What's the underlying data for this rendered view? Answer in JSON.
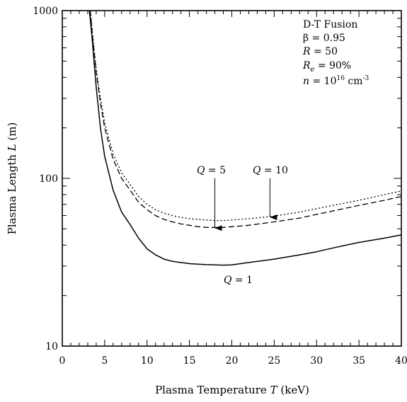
{
  "chart_data": {
    "type": "line",
    "title": "",
    "xlabel": "Plasma Temperature",
    "xlabel_symbol": "T",
    "xlabel_unit": "(keV)",
    "ylabel": "Plasma Length",
    "ylabel_symbol": "L",
    "ylabel_unit": "(m)",
    "xlim": [
      0,
      40
    ],
    "ylim": [
      10,
      1000
    ],
    "yscale": "log",
    "grid": false,
    "xticks": [
      0,
      5,
      10,
      15,
      20,
      25,
      30,
      35,
      40
    ],
    "xtick_labels": [
      "0",
      "5",
      "10",
      "15",
      "20",
      "25",
      "30",
      "35",
      "40"
    ],
    "yticks": [
      10,
      100,
      1000
    ],
    "ytick_labels": [
      "10",
      "100",
      "1000"
    ],
    "series": [
      {
        "label": "Q = 1",
        "style": "solid",
        "x": [
          3.2,
          3.5,
          4,
          4.5,
          5,
          6,
          7,
          8,
          9,
          10,
          11,
          12,
          13,
          14,
          15,
          16,
          17,
          18,
          19,
          20,
          22,
          25,
          28,
          30,
          32,
          35,
          38,
          40
        ],
        "y": [
          1000,
          700,
          350,
          200,
          135,
          85,
          63,
          53,
          44,
          38,
          35,
          33,
          32,
          31.5,
          31,
          30.8,
          30.6,
          30.5,
          30.4,
          30.5,
          31.5,
          33,
          35,
          36.5,
          38.5,
          41.5,
          44,
          46
        ]
      },
      {
        "label": "Q = 5",
        "style": "dashed",
        "x": [
          3.3,
          3.6,
          4,
          4.5,
          5,
          6,
          7,
          8,
          9,
          10,
          11,
          12,
          13,
          14,
          15,
          16,
          17,
          18,
          19,
          20,
          22,
          25,
          28,
          30,
          32,
          35,
          38,
          40
        ],
        "y": [
          1000,
          680,
          430,
          280,
          200,
          130,
          100,
          85,
          72,
          65,
          60,
          57,
          55,
          53.5,
          52.5,
          51.5,
          51,
          51,
          51,
          51.5,
          52.5,
          55,
          58,
          61,
          64,
          69,
          74,
          78
        ]
      },
      {
        "label": "Q = 10",
        "style": "dotted",
        "x": [
          3.3,
          3.6,
          4,
          4.5,
          5,
          6,
          7,
          8,
          9,
          10,
          11,
          12,
          13,
          14,
          15,
          16,
          17,
          18,
          19,
          20,
          22,
          25,
          28,
          30,
          32,
          35,
          38,
          40
        ],
        "y": [
          1000,
          700,
          450,
          300,
          215,
          140,
          108,
          92,
          78,
          70,
          65,
          62,
          60,
          58.5,
          57.5,
          57,
          56.5,
          56,
          56,
          56.5,
          57.5,
          59.5,
          63,
          66,
          69,
          74,
          80,
          84
        ]
      }
    ],
    "annotations": {
      "info_box": {
        "line1": "D-T Fusion",
        "beta_symbol": "β",
        "beta_value": " = 0.95",
        "R_symbol": "R",
        "R_value": " = 50",
        "Re_symbol": "R",
        "Re_sub": "e",
        "Re_value": " = 90%",
        "n_symbol": "n",
        "n_mid": " = 10",
        "n_exp": "16",
        "n_unit": " cm",
        "n_unit_exp": "-3"
      },
      "q1": {
        "symbol": "Q",
        "value": " = 1"
      },
      "q5": {
        "symbol": "Q",
        "value": " = 5",
        "arrow_x": 18
      },
      "q10": {
        "symbol": "Q",
        "value": " = 10",
        "arrow_x": 24.5
      }
    }
  }
}
